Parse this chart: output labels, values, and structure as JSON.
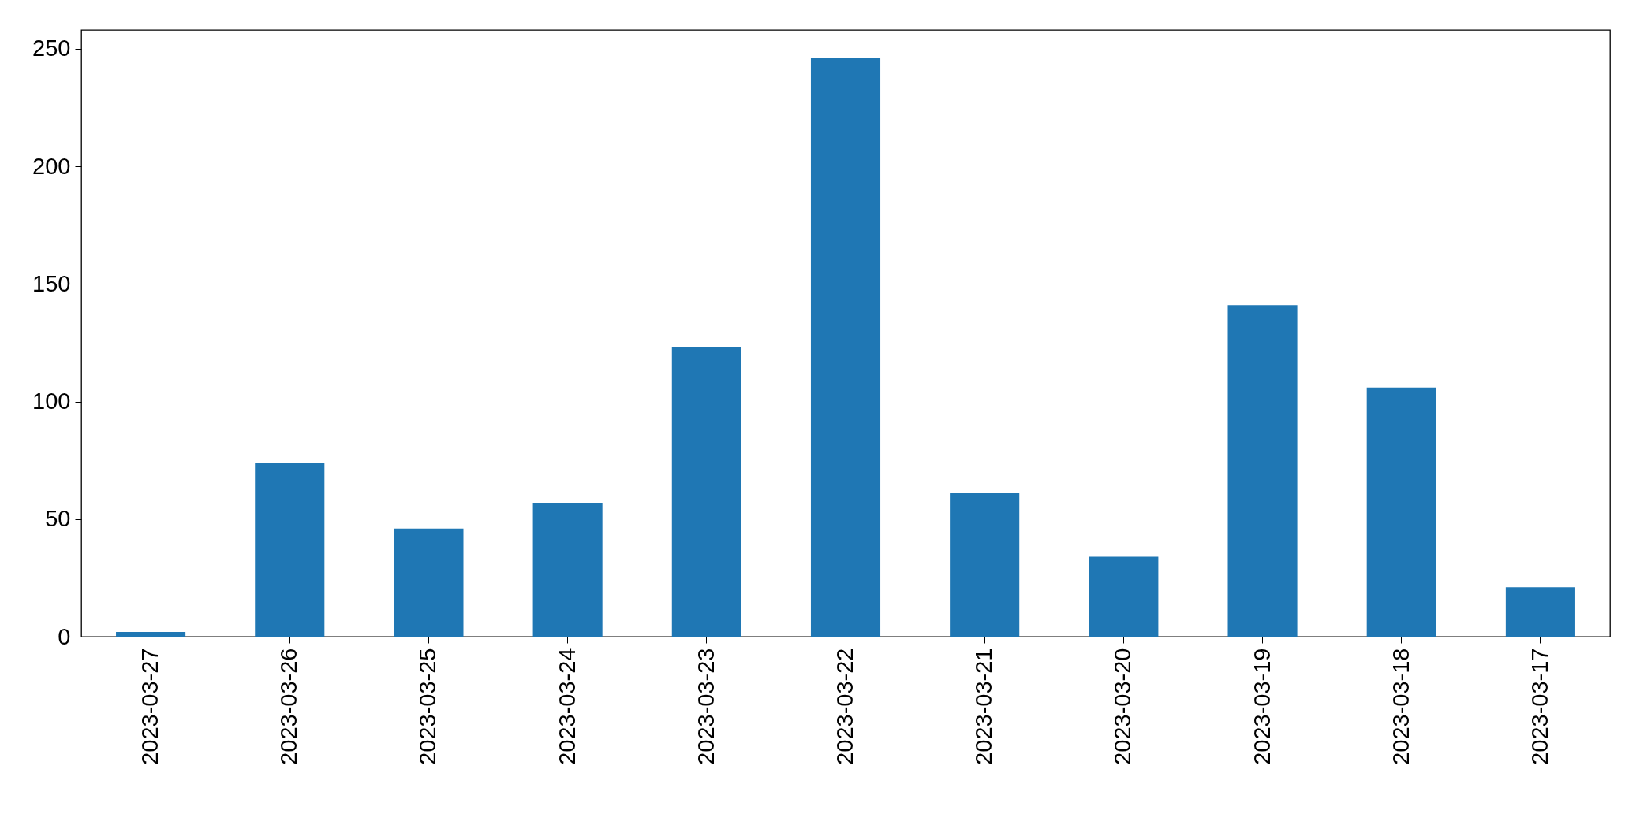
{
  "chart_data": {
    "type": "bar",
    "categories": [
      "2023-03-27",
      "2023-03-26",
      "2023-03-25",
      "2023-03-24",
      "2023-03-23",
      "2023-03-22",
      "2023-03-21",
      "2023-03-20",
      "2023-03-19",
      "2023-03-18",
      "2023-03-17"
    ],
    "values": [
      2,
      74,
      46,
      57,
      123,
      246,
      61,
      34,
      141,
      106,
      21
    ],
    "color": "#1f77b4",
    "ylim": [
      0,
      258
    ],
    "yticks": [
      0,
      50,
      100,
      150,
      200,
      250
    ],
    "grid": false
  }
}
